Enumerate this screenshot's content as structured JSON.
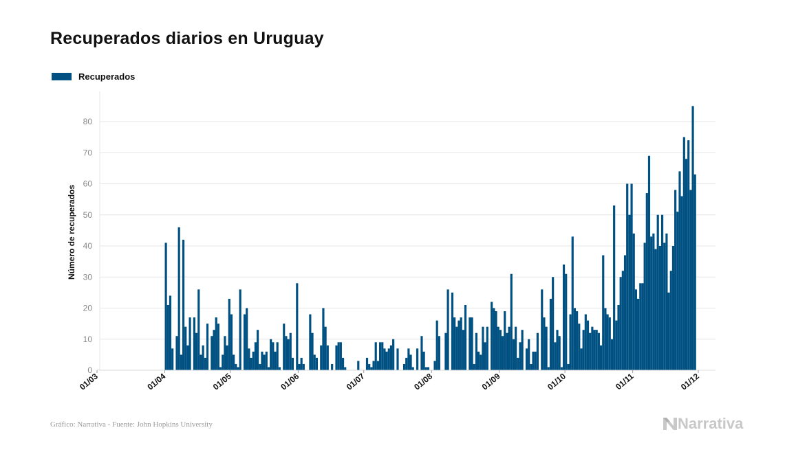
{
  "colors": {
    "bar": "#005182",
    "grid": "#e6e6e6",
    "logo": "#c8c8c8"
  },
  "chart_data": {
    "type": "bar",
    "title": "Recuperados diarios en Uruguay",
    "xlabel": "",
    "ylabel": "Número de recuperados",
    "ylim": [
      0,
      90
    ],
    "yticks": [
      0,
      10,
      20,
      30,
      40,
      50,
      60,
      70,
      80
    ],
    "xticks": [
      "01/03",
      "01/04",
      "01/05",
      "01/06",
      "01/07",
      "01/08",
      "01/09",
      "01/10",
      "01/11",
      "01/12"
    ],
    "x_start": "2020-03-01",
    "grid": true,
    "legend_position": "top-left",
    "series": [
      {
        "name": "Recuperados",
        "values": [
          0,
          0,
          0,
          0,
          0,
          0,
          0,
          0,
          0,
          0,
          0,
          0,
          0,
          0,
          0,
          0,
          0,
          0,
          0,
          0,
          0,
          0,
          0,
          0,
          0,
          0,
          0,
          0,
          0,
          0,
          0,
          41,
          21,
          24,
          7,
          0,
          11,
          46,
          5,
          42,
          14,
          8,
          17,
          0,
          17,
          12,
          26,
          5,
          8,
          4,
          15,
          0,
          11,
          13,
          17,
          15,
          1,
          5,
          11,
          8,
          23,
          18,
          5,
          2,
          1,
          26,
          0,
          18,
          20,
          7,
          4,
          6,
          9,
          13,
          2,
          6,
          5,
          6,
          1,
          10,
          9,
          6,
          9,
          1,
          0,
          15,
          11,
          10,
          12,
          4,
          0,
          28,
          2,
          4,
          2,
          0,
          0,
          18,
          12,
          5,
          4,
          0,
          8,
          20,
          14,
          8,
          0,
          2,
          0,
          8,
          9,
          9,
          4,
          1,
          0,
          0,
          0,
          0,
          0,
          3,
          0,
          0,
          0,
          4,
          2,
          1,
          3,
          9,
          3,
          9,
          9,
          7,
          6,
          7,
          8,
          10,
          0,
          7,
          0,
          0,
          2,
          4,
          7,
          5,
          1,
          0,
          7,
          0,
          11,
          6,
          1,
          1,
          0,
          0,
          3,
          16,
          11,
          0,
          0,
          12,
          26,
          0,
          25,
          17,
          14,
          16,
          17,
          13,
          21,
          0,
          17,
          17,
          2,
          12,
          6,
          5,
          14,
          9,
          14,
          0,
          22,
          20,
          19,
          14,
          13,
          11,
          19,
          12,
          14,
          31,
          10,
          14,
          4,
          9,
          13,
          0,
          7,
          10,
          2,
          6,
          6,
          12,
          0,
          26,
          17,
          14,
          1,
          23,
          30,
          9,
          13,
          11,
          1,
          34,
          31,
          2,
          18,
          43,
          20,
          19,
          15,
          7,
          13,
          18,
          16,
          12,
          14,
          13,
          13,
          12,
          8,
          37,
          20,
          18,
          17,
          10,
          53,
          16,
          21,
          30,
          32,
          37,
          60,
          50,
          60,
          44,
          26,
          23,
          28,
          28,
          41,
          57,
          69,
          43,
          44,
          39,
          50,
          40,
          50,
          41,
          44,
          25,
          32,
          40,
          58,
          51,
          64,
          56,
          75,
          68,
          74,
          58,
          85,
          63
        ]
      }
    ]
  },
  "footer": {
    "source": "Gráfico: Narrativa - Fuente: John Hopkins University"
  },
  "logo": {
    "text": "Narrativa",
    "icon": "narrativa-n-icon"
  }
}
